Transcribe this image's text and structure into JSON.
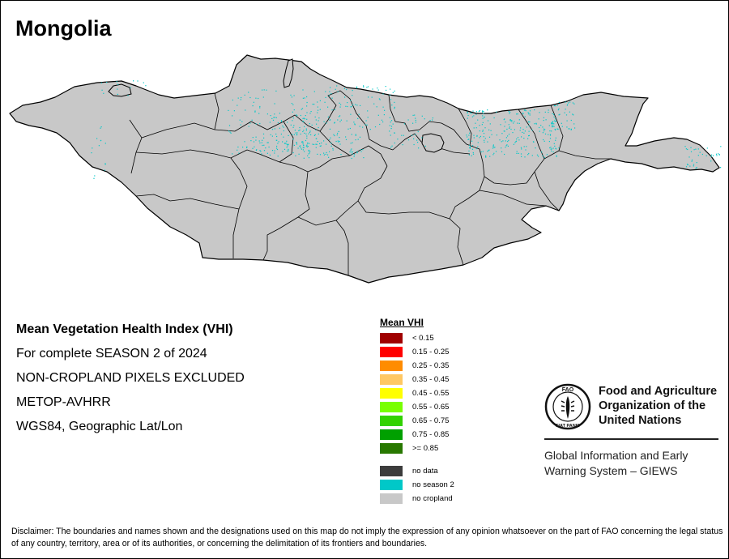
{
  "map": {
    "title": "Mongolia",
    "colors": {
      "no_cropland": "#c8c8c8",
      "no_season_2": "#00c8c8",
      "boundary": "#000000"
    }
  },
  "info": {
    "line1": "Mean Vegetation Health Index (VHI)",
    "line2": "For complete SEASON 2 of 2024",
    "line3": "NON-CROPLAND PIXELS EXCLUDED",
    "line4": "METOP-AVHRR",
    "line5": "WGS84, Geographic Lat/Lon"
  },
  "legend": {
    "title": "Mean VHI",
    "items": [
      {
        "label": "< 0.15",
        "color": "#a00000"
      },
      {
        "label": "0.15 - 0.25",
        "color": "#ff0000"
      },
      {
        "label": "0.25 - 0.35",
        "color": "#ff8c00"
      },
      {
        "label": "0.35 - 0.45",
        "color": "#ffc864"
      },
      {
        "label": "0.45 - 0.55",
        "color": "#ffff00"
      },
      {
        "label": "0.55 - 0.65",
        "color": "#78ff00"
      },
      {
        "label": "0.65 - 0.75",
        "color": "#32d200"
      },
      {
        "label": "0.75 - 0.85",
        "color": "#00a000"
      },
      {
        "label": ">= 0.85",
        "color": "#287800"
      }
    ],
    "extra": [
      {
        "label": "no data",
        "color": "#3c3c3c"
      },
      {
        "label": "no season 2",
        "color": "#00c8c8"
      },
      {
        "label": "no cropland",
        "color": "#c8c8c8"
      }
    ]
  },
  "org": {
    "name_line1": "Food and Agriculture",
    "name_line2": "Organization of the",
    "name_line3": "United Nations",
    "system_line1": "Global Information and Early",
    "system_line2": "Warning System – GIEWS",
    "emblem_top": "FAO",
    "emblem_motto": "FIAT PANIS"
  },
  "disclaimer": "Disclaimer: The boundaries and names shown and the designations used on this map do not imply the expression of any opinion whatsoever on the part of FAO concerning the legal status of any country, territory, area or of its authorities, or concerning the delimitation of its frontiers and boundaries."
}
